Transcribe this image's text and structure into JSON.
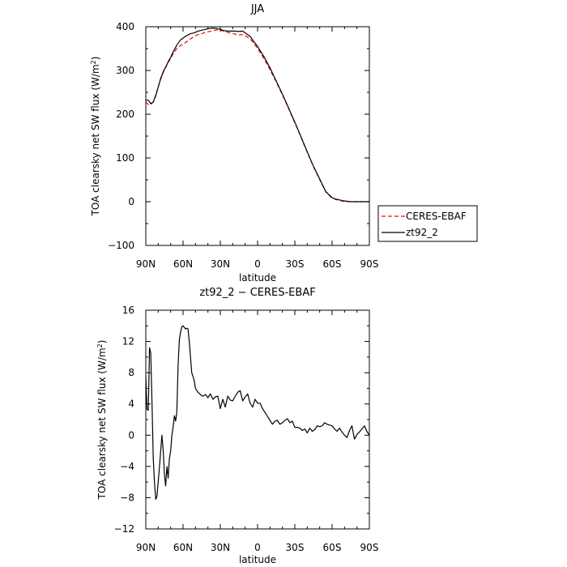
{
  "chart_data": [
    {
      "type": "line",
      "title": "JJA",
      "xlabel": "latitude",
      "ylabel": "TOA clearsky net SW flux (W/m²)",
      "ylabel_main": "TOA clearsky net SW flux (W/m",
      "ylabel_sup": "2",
      "ylabel_end": ")",
      "xlim": [
        90,
        -90
      ],
      "ylim": [
        -100,
        400
      ],
      "x_ticks": [
        90,
        60,
        30,
        0,
        -30,
        -60,
        -90
      ],
      "x_tick_labels": [
        "90N",
        "60N",
        "30N",
        "0",
        "30S",
        "60S",
        "90S"
      ],
      "y_ticks": [
        -100,
        0,
        100,
        200,
        300,
        400
      ],
      "y_tick_labels": [
        "−100",
        "0",
        "100",
        "200",
        "300",
        "400"
      ],
      "grid": false,
      "legend": "outside-right",
      "series": [
        {
          "name": "CERES-EBAF",
          "color": "#ff0000",
          "dash": "dashed",
          "x": [
            90,
            88,
            86,
            84,
            82,
            80,
            78,
            76,
            74,
            72,
            70,
            68,
            65,
            62,
            60,
            57,
            54,
            51,
            48,
            45,
            42,
            39,
            36,
            33,
            30,
            27,
            24,
            21,
            18,
            15,
            12,
            9,
            6,
            3,
            0,
            -5,
            -10,
            -15,
            -20,
            -25,
            -30,
            -35,
            -40,
            -45,
            -50,
            -55,
            -60,
            -63,
            -66,
            -69,
            -72,
            -75,
            -80,
            -85,
            -90
          ],
          "values": [
            228,
            222,
            222,
            228,
            245,
            262,
            280,
            295,
            307,
            318,
            328,
            338,
            350,
            357,
            360,
            366,
            372,
            378,
            382,
            384,
            387,
            389,
            391,
            393,
            392,
            390,
            387,
            385,
            383,
            381,
            382,
            378,
            372,
            362,
            350,
            328,
            302,
            274,
            244,
            213,
            180,
            147,
            113,
            80,
            50,
            22,
            8,
            5,
            3,
            1,
            0.5,
            0,
            0,
            0,
            0
          ]
        },
        {
          "name": "zt92_2",
          "color": "#000000",
          "dash": "solid",
          "x": [
            90,
            88,
            86,
            84,
            82,
            80,
            78,
            76,
            74,
            72,
            70,
            68,
            65,
            62,
            60,
            57,
            54,
            51,
            48,
            45,
            42,
            39,
            36,
            33,
            30,
            27,
            24,
            21,
            18,
            15,
            12,
            9,
            6,
            3,
            0,
            -5,
            -10,
            -15,
            -20,
            -25,
            -30,
            -35,
            -40,
            -45,
            -50,
            -55,
            -60,
            -63,
            -66,
            -69,
            -72,
            -75,
            -80,
            -85,
            -90
          ],
          "values": [
            232,
            232,
            224,
            228,
            242,
            262,
            282,
            297,
            308,
            320,
            330,
            342,
            358,
            370,
            374,
            380,
            384,
            386,
            390,
            392,
            394,
            396,
            397,
            396,
            394,
            391,
            390,
            390,
            390,
            389,
            390,
            384,
            378,
            366,
            355,
            332,
            306,
            276,
            246,
            214,
            182,
            148,
            114,
            81,
            52,
            23,
            9,
            6,
            4,
            2,
            1,
            0,
            0,
            0,
            0
          ]
        }
      ]
    },
    {
      "type": "line",
      "title": "zt92_2 − CERES-EBAF",
      "xlabel": "latitude",
      "ylabel": "TOA clearsky net SW flux (W/m²)",
      "ylabel_main": "TOA clearsky net SW flux (W/m",
      "ylabel_sup": "2",
      "ylabel_end": ")",
      "xlim": [
        90,
        -90
      ],
      "ylim": [
        -12,
        16
      ],
      "x_ticks": [
        90,
        60,
        30,
        0,
        -30,
        -60,
        -90
      ],
      "x_tick_labels": [
        "90N",
        "60N",
        "30N",
        "0",
        "30S",
        "60S",
        "90S"
      ],
      "y_ticks": [
        -12,
        -8,
        -4,
        0,
        4,
        8,
        12,
        16
      ],
      "y_tick_labels": [
        "−12",
        "−8",
        "−4",
        "0",
        "4",
        "8",
        "12",
        "16"
      ],
      "grid": false,
      "legend": "none",
      "series": [
        {
          "color": "#000000",
          "dash": "solid",
          "x": [
            90,
            89,
            88,
            87,
            86,
            85,
            84,
            83,
            82,
            81,
            80,
            79,
            78,
            77,
            76,
            75,
            74,
            73,
            72,
            71,
            70,
            69,
            68,
            67,
            66,
            65,
            64,
            63,
            62,
            61,
            60,
            59,
            58,
            57,
            56,
            55,
            54,
            53,
            52,
            51,
            50,
            48,
            46,
            44,
            42,
            40,
            38,
            36,
            34,
            32,
            30,
            28,
            26,
            24,
            22,
            20,
            18,
            16,
            14,
            12,
            10,
            8,
            6,
            4,
            2,
            0,
            -2,
            -4,
            -6,
            -8,
            -10,
            -12,
            -14,
            -16,
            -18,
            -20,
            -22,
            -24,
            -26,
            -28,
            -30,
            -32,
            -34,
            -36,
            -38,
            -40,
            -42,
            -44,
            -46,
            -48,
            -50,
            -52,
            -54,
            -56,
            -58,
            -60,
            -62,
            -64,
            -66,
            -68,
            -70,
            -72,
            -74,
            -76,
            -78,
            -80,
            -82,
            -84,
            -86,
            -88,
            -90
          ],
          "values": [
            7.5,
            3.3,
            3.2,
            11.2,
            10.5,
            4,
            -3,
            -6,
            -8.2,
            -7.8,
            -6,
            -4,
            -2,
            0,
            -2,
            -5,
            -6.5,
            -4,
            -5.5,
            -3,
            -2,
            0,
            1,
            2.5,
            1.8,
            3,
            9,
            12.2,
            13.2,
            13.9,
            14,
            13.8,
            13.6,
            13.7,
            13.6,
            12,
            10,
            8,
            7.5,
            7,
            6,
            5.5,
            5.2,
            5,
            5.2,
            4.8,
            5.3,
            4.6,
            4.9,
            5,
            3.4,
            4.6,
            3.6,
            5.0,
            4.5,
            4.4,
            5.0,
            5.5,
            5.7,
            4.4,
            4.9,
            5.3,
            4.1,
            3.6,
            4.6,
            4.1,
            4.1,
            3.4,
            2.9,
            2.4,
            1.9,
            1.4,
            1.8,
            1.9,
            1.4,
            1.6,
            1.9,
            2.1,
            1.6,
            1.8,
            1.0,
            1.0,
            0.9,
            0.6,
            0.8,
            0.3,
            0.9,
            0.5,
            0.7,
            1.2,
            1.1,
            1.2,
            1.6,
            1.4,
            1.3,
            1.2,
            0.8,
            0.5,
            0.9,
            0.4,
            0.0,
            -0.3,
            0.6,
            1.2,
            -0.5,
            0.1,
            0.4,
            0.8,
            1.2,
            0.5,
            0.0
          ]
        }
      ]
    }
  ]
}
